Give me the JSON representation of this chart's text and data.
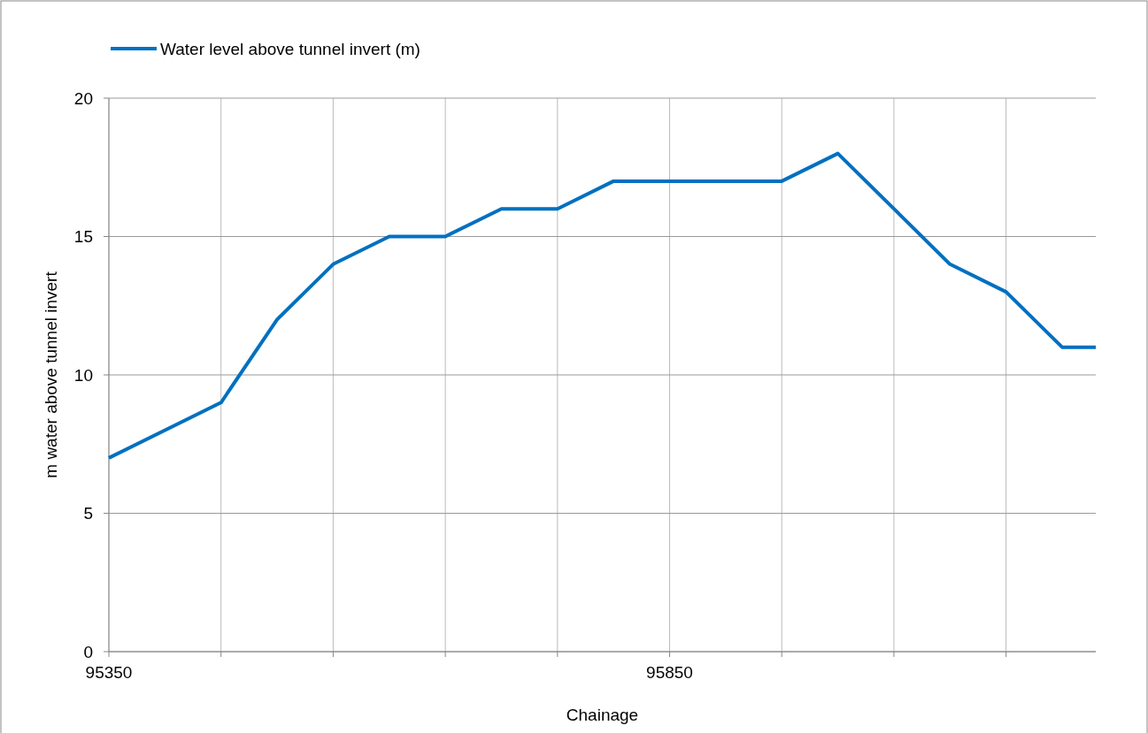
{
  "chart_data": {
    "type": "line",
    "xlabel": "Chainage",
    "ylabel": "m water above tunnel invert",
    "x": [
      95350,
      95450,
      95500,
      95550,
      95600,
      95650,
      95700,
      95750,
      95800,
      95850,
      95950,
      96000,
      96050,
      96100,
      96150,
      96200,
      96230
    ],
    "series": [
      {
        "name": "Water level above tunnel invert (m)",
        "color": "#0070c0",
        "values": [
          7,
          9,
          12,
          14,
          15,
          15,
          16,
          16,
          17,
          17,
          17,
          18,
          16,
          14,
          13,
          11,
          11
        ]
      }
    ],
    "xlim": [
      95350,
      96230
    ],
    "xticks": [
      95350,
      {
        "value": 95450,
        "label": null
      },
      {
        "value": 95550,
        "label": null
      },
      {
        "value": 95650,
        "label": null
      },
      {
        "value": 95750,
        "label": null
      },
      95850,
      {
        "value": 95950,
        "label": null
      },
      {
        "value": 96050,
        "label": null
      },
      {
        "value": 96150,
        "label": null
      }
    ],
    "ylim": [
      0,
      20
    ],
    "yticks": [
      0,
      5,
      10,
      15,
      20
    ],
    "grid": true,
    "legend": "top left",
    "marker": "none",
    "line_style": "solid"
  }
}
